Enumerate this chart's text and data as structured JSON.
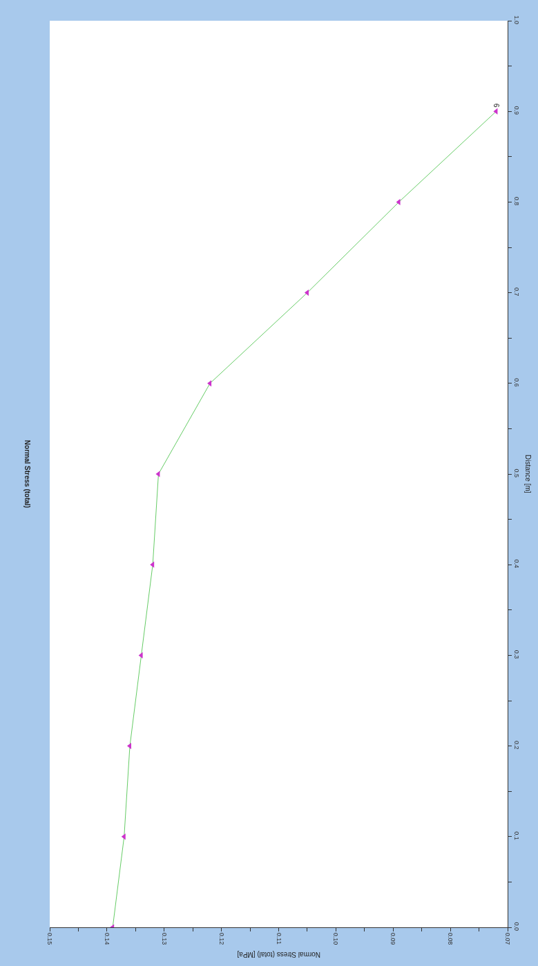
{
  "chart_data": {
    "type": "line",
    "title": "Normal Stress (total)",
    "xlabel": "Normal Stress (total) [MPa]",
    "ylabel": "Distance [m]",
    "x": [
      0.139,
      0.137,
      0.136,
      0.134,
      0.132,
      0.131,
      0.122,
      0.105,
      0.089,
      0.072
    ],
    "series": [
      {
        "color": "#66cc66",
        "colors": [
          "#cc33cc",
          "#cc33cc",
          "#cc33cc",
          "#cc33cc",
          "#cc33cc",
          "#cc33cc",
          "#cc33cc",
          "#cc33cc",
          "#cc33cc",
          "#cc33cc"
        ],
        "values": [
          0,
          0.1,
          0.2,
          0.3,
          0.4,
          0.5,
          0.6,
          0.7,
          0.8,
          0.9
        ]
      }
    ],
    "xlim": [
      0.15,
      0.07
    ],
    "xticks": [
      0.15,
      {
        "value": 0.145,
        "label": null
      },
      0.14,
      {
        "value": 0.135,
        "label": null
      },
      0.13,
      {
        "value": 0.125,
        "label": null
      },
      0.12,
      {
        "value": 0.115,
        "label": null
      },
      0.11,
      {
        "value": 0.105,
        "label": null
      },
      {
        "value": 0.1,
        "label": "0.10"
      },
      {
        "value": 0.095,
        "label": null
      },
      0.09,
      {
        "value": 0.085,
        "label": null
      },
      0.08,
      {
        "value": 0.075,
        "label": null
      },
      0.07
    ],
    "ylim": [
      0,
      1
    ],
    "yticks": [
      {
        "value": 0,
        "label": "0.0"
      },
      {
        "value": 0.05,
        "label": null
      },
      0.1,
      {
        "value": 0.15,
        "label": null
      },
      0.2,
      {
        "value": 0.25,
        "label": null
      },
      0.3,
      {
        "value": 0.35,
        "label": null
      },
      0.4,
      {
        "value": 0.45,
        "label": null
      },
      0.5,
      {
        "value": 0.55,
        "label": null
      },
      0.6,
      {
        "value": 0.65,
        "label": null
      },
      0.7,
      {
        "value": 0.75,
        "label": null
      },
      0.8,
      {
        "value": 0.85,
        "label": null
      },
      0.9,
      {
        "value": 0.95,
        "label": null
      },
      {
        "value": 1,
        "label": "1.0"
      }
    ],
    "annotations": [
      {
        "text": "6",
        "x": 0.072,
        "y": 0.9
      }
    ],
    "marker": "triangle",
    "line_style": "solid"
  }
}
